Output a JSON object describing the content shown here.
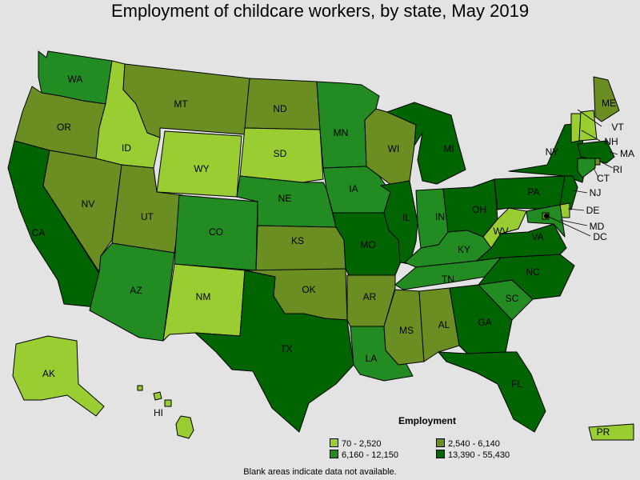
{
  "title": "Employment of childcare workers, by state, May 2019",
  "legend": {
    "title": "Employment",
    "items": [
      {
        "label": "70 - 2,520",
        "color": "#9acd32"
      },
      {
        "label": "2,540 - 6,140",
        "color": "#6b8e23"
      },
      {
        "label": "6,160 - 12,150",
        "color": "#228b22"
      },
      {
        "label": "13,390 - 55,430",
        "color": "#006400"
      }
    ]
  },
  "footnote": "Blank areas indicate data not available.",
  "states": [
    {
      "abbr": "WA",
      "tier": 2
    },
    {
      "abbr": "OR",
      "tier": 1
    },
    {
      "abbr": "CA",
      "tier": 3
    },
    {
      "abbr": "NV",
      "tier": 1
    },
    {
      "abbr": "ID",
      "tier": 0
    },
    {
      "abbr": "MT",
      "tier": 1
    },
    {
      "abbr": "WY",
      "tier": 0
    },
    {
      "abbr": "UT",
      "tier": 1
    },
    {
      "abbr": "AZ",
      "tier": 2
    },
    {
      "abbr": "CO",
      "tier": 2
    },
    {
      "abbr": "NM",
      "tier": 0
    },
    {
      "abbr": "ND",
      "tier": 1
    },
    {
      "abbr": "SD",
      "tier": 0
    },
    {
      "abbr": "NE",
      "tier": 2
    },
    {
      "abbr": "KS",
      "tier": 1
    },
    {
      "abbr": "OK",
      "tier": 1
    },
    {
      "abbr": "TX",
      "tier": 3
    },
    {
      "abbr": "MN",
      "tier": 2
    },
    {
      "abbr": "IA",
      "tier": 2
    },
    {
      "abbr": "MO",
      "tier": 3
    },
    {
      "abbr": "AR",
      "tier": 1
    },
    {
      "abbr": "LA",
      "tier": 2
    },
    {
      "abbr": "WI",
      "tier": 1
    },
    {
      "abbr": "IL",
      "tier": 3
    },
    {
      "abbr": "MI",
      "tier": 3
    },
    {
      "abbr": "IN",
      "tier": 2
    },
    {
      "abbr": "OH",
      "tier": 3
    },
    {
      "abbr": "KY",
      "tier": 2
    },
    {
      "abbr": "TN",
      "tier": 2
    },
    {
      "abbr": "MS",
      "tier": 1
    },
    {
      "abbr": "AL",
      "tier": 1
    },
    {
      "abbr": "GA",
      "tier": 3
    },
    {
      "abbr": "FL",
      "tier": 3
    },
    {
      "abbr": "SC",
      "tier": 2
    },
    {
      "abbr": "NC",
      "tier": 3
    },
    {
      "abbr": "VA",
      "tier": 3
    },
    {
      "abbr": "WV",
      "tier": 0
    },
    {
      "abbr": "PA",
      "tier": 3
    },
    {
      "abbr": "NY",
      "tier": 3
    },
    {
      "abbr": "ME",
      "tier": 1
    },
    {
      "abbr": "VT",
      "tier": 0
    },
    {
      "abbr": "NH",
      "tier": 0
    },
    {
      "abbr": "MA",
      "tier": 3
    },
    {
      "abbr": "RI",
      "tier": 1
    },
    {
      "abbr": "CT",
      "tier": 2
    },
    {
      "abbr": "NJ",
      "tier": 3
    },
    {
      "abbr": "DE",
      "tier": 0
    },
    {
      "abbr": "MD",
      "tier": 2
    },
    {
      "abbr": "DC",
      "tier": 1
    },
    {
      "abbr": "AK",
      "tier": 0
    },
    {
      "abbr": "HI",
      "tier": 0
    },
    {
      "abbr": "PR",
      "tier": 0
    }
  ]
}
